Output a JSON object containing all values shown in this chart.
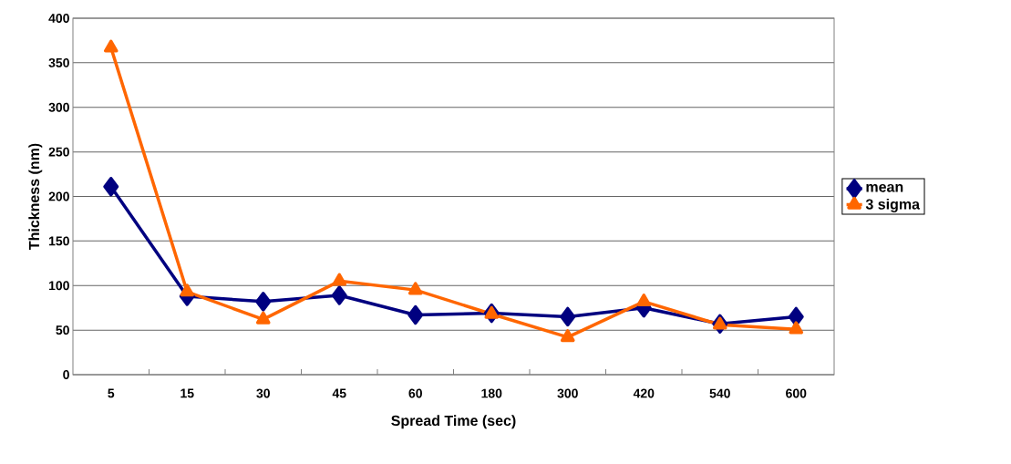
{
  "chart_data": {
    "type": "line",
    "xlabel": "Spread Time (sec)",
    "ylabel": "Thickness (nm)",
    "categories": [
      "5",
      "15",
      "30",
      "45",
      "60",
      "180",
      "300",
      "420",
      "540",
      "600"
    ],
    "ylim": [
      0,
      400
    ],
    "yticks": [
      0,
      50,
      100,
      150,
      200,
      250,
      300,
      350,
      400
    ],
    "grid": "y",
    "legend": "right",
    "series": [
      {
        "name": "mean",
        "color": "#000080",
        "marker": "diamond",
        "values": [
          211,
          88,
          82,
          89,
          67,
          69,
          65,
          75,
          57,
          65
        ]
      },
      {
        "name": "3 sigma",
        "color": "#ff6600",
        "marker": "triangle",
        "values": [
          367,
          93,
          62,
          105,
          95,
          68,
          42,
          82,
          56,
          51
        ]
      }
    ]
  }
}
